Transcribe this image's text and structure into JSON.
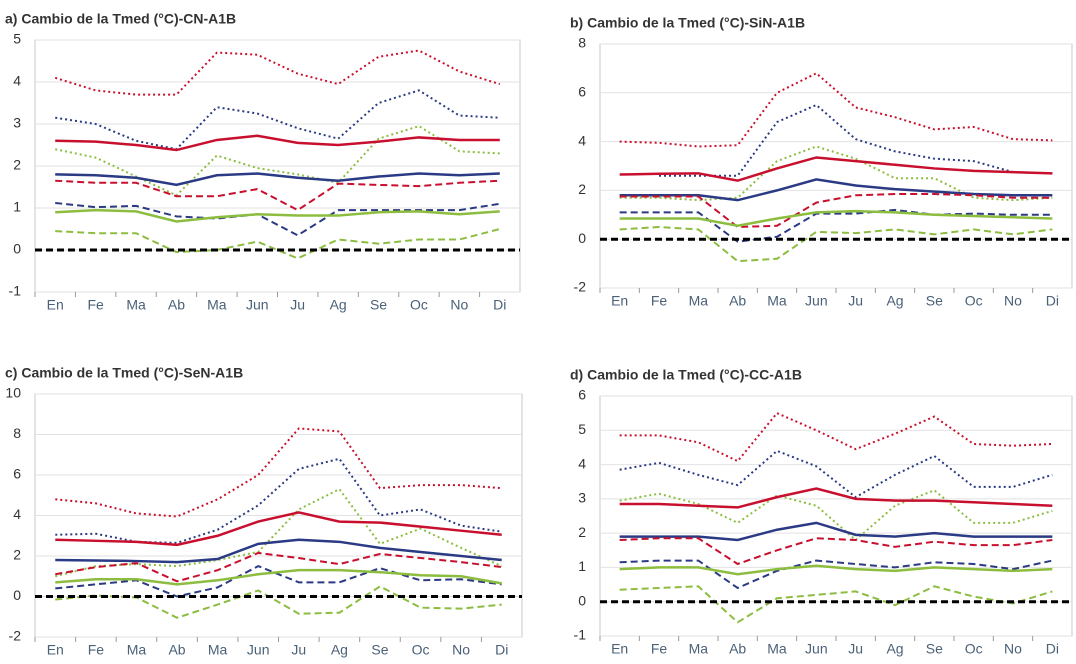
{
  "chart_data": [
    {
      "type": "line",
      "title": "a) Cambio de la Tmed (°C)-CN-A1B",
      "categories": [
        "En",
        "Fe",
        "Ma",
        "Ab",
        "Ma",
        "Jun",
        "Ju",
        "Ag",
        "Se",
        "Oc",
        "No",
        "Di"
      ],
      "ylim": [
        -1,
        5
      ],
      "yticks": [
        -1,
        0,
        1,
        2,
        3,
        4,
        5
      ],
      "grid": true,
      "reference_line": 0,
      "series": [
        {
          "color": "#c8102e",
          "style": "dotted",
          "values": [
            4.1,
            3.8,
            3.7,
            3.7,
            4.7,
            4.65,
            4.2,
            3.95,
            4.6,
            4.75,
            4.25,
            3.95
          ]
        },
        {
          "color": "#2a3a84",
          "style": "dotted",
          "values": [
            3.15,
            3.0,
            2.6,
            2.4,
            3.4,
            3.25,
            2.9,
            2.65,
            3.5,
            3.8,
            3.2,
            3.15
          ]
        },
        {
          "color": "#8cbd3f",
          "style": "dotted",
          "values": [
            2.4,
            2.2,
            1.75,
            1.3,
            2.25,
            1.95,
            1.8,
            1.6,
            2.65,
            2.95,
            2.35,
            2.3
          ]
        },
        {
          "color": "#c8102e",
          "style": "solid",
          "values": [
            2.6,
            2.58,
            2.5,
            2.38,
            2.62,
            2.72,
            2.55,
            2.5,
            2.58,
            2.68,
            2.62,
            2.62
          ]
        },
        {
          "color": "#2a3a84",
          "style": "solid",
          "values": [
            1.8,
            1.78,
            1.72,
            1.55,
            1.78,
            1.82,
            1.72,
            1.65,
            1.75,
            1.82,
            1.78,
            1.82
          ]
        },
        {
          "color": "#c8102e",
          "style": "dashed",
          "values": [
            1.65,
            1.6,
            1.6,
            1.28,
            1.28,
            1.45,
            0.95,
            1.58,
            1.55,
            1.52,
            1.6,
            1.65
          ]
        },
        {
          "color": "#2a3a84",
          "style": "dashed",
          "values": [
            1.12,
            1.02,
            1.05,
            0.8,
            0.75,
            0.85,
            0.35,
            0.95,
            0.95,
            0.95,
            0.95,
            1.1
          ]
        },
        {
          "color": "#8cbd3f",
          "style": "solid",
          "values": [
            0.9,
            0.95,
            0.92,
            0.68,
            0.78,
            0.85,
            0.82,
            0.82,
            0.9,
            0.92,
            0.85,
            0.92
          ]
        },
        {
          "color": "#8cbd3f",
          "style": "dashed",
          "values": [
            0.45,
            0.4,
            0.4,
            -0.05,
            0.0,
            0.2,
            -0.2,
            0.25,
            0.15,
            0.25,
            0.25,
            0.5
          ]
        }
      ]
    },
    {
      "type": "line",
      "title": "b) Cambio de la Tmed (°C)-SiN-A1B",
      "categories": [
        "En",
        "Fe",
        "Ma",
        "Ab",
        "Ma",
        "Jun",
        "Ju",
        "Ag",
        "Se",
        "Oc",
        "No",
        "Di"
      ],
      "ylim": [
        -2,
        8
      ],
      "yticks": [
        -2,
        0,
        2,
        4,
        6,
        8
      ],
      "grid": true,
      "reference_line": 0,
      "series": [
        {
          "color": "#c8102e",
          "style": "dotted",
          "values": [
            4.0,
            3.95,
            3.8,
            3.85,
            6.0,
            6.8,
            5.4,
            5.0,
            4.5,
            4.6,
            4.1,
            4.05
          ]
        },
        {
          "color": "#2a3a84",
          "style": "dotted",
          "values": [
            null,
            2.6,
            2.6,
            2.6,
            4.8,
            5.5,
            4.1,
            3.6,
            3.3,
            3.2,
            2.75,
            2.7
          ]
        },
        {
          "color": "#8cbd3f",
          "style": "dotted",
          "values": [
            1.7,
            1.7,
            1.6,
            1.7,
            3.2,
            3.8,
            3.3,
            2.5,
            2.5,
            1.7,
            1.6,
            1.7
          ]
        },
        {
          "color": "#c8102e",
          "style": "solid",
          "values": [
            2.65,
            2.68,
            2.7,
            2.4,
            2.9,
            3.35,
            3.2,
            3.05,
            2.9,
            2.8,
            2.75,
            2.7
          ]
        },
        {
          "color": "#2a3a84",
          "style": "solid",
          "values": [
            1.8,
            1.8,
            1.8,
            1.6,
            2.0,
            2.45,
            2.2,
            2.05,
            1.95,
            1.85,
            1.8,
            1.8
          ]
        },
        {
          "color": "#c8102e",
          "style": "dashed",
          "values": [
            1.75,
            1.75,
            1.75,
            0.5,
            0.55,
            1.5,
            1.8,
            1.85,
            1.85,
            1.8,
            1.7,
            1.7
          ]
        },
        {
          "color": "#2a3a84",
          "style": "dashed",
          "values": [
            1.1,
            1.1,
            1.1,
            -0.1,
            0.1,
            1.05,
            1.05,
            1.2,
            1.0,
            1.05,
            1.0,
            1.0
          ]
        },
        {
          "color": "#8cbd3f",
          "style": "solid",
          "values": [
            0.85,
            0.85,
            0.85,
            0.55,
            0.85,
            1.1,
            1.15,
            1.1,
            1.0,
            0.95,
            0.9,
            0.85
          ]
        },
        {
          "color": "#8cbd3f",
          "style": "dashed",
          "values": [
            0.4,
            0.5,
            0.4,
            -0.9,
            -0.8,
            0.3,
            0.25,
            0.4,
            0.2,
            0.4,
            0.2,
            0.4
          ]
        }
      ]
    },
    {
      "type": "line",
      "title": "c) Cambio de la Tmed (°C)-SeN-A1B",
      "categories": [
        "En",
        "Fe",
        "Ma",
        "Ab",
        "Ma",
        "Jun",
        "Ju",
        "Ag",
        "Se",
        "Oc",
        "No",
        "Di"
      ],
      "ylim": [
        -2,
        10
      ],
      "yticks": [
        -2,
        0,
        2,
        4,
        6,
        8,
        10
      ],
      "grid": true,
      "reference_line": 0,
      "series": [
        {
          "color": "#c8102e",
          "style": "dotted",
          "values": [
            4.8,
            4.6,
            4.1,
            3.95,
            4.8,
            6.0,
            8.3,
            8.15,
            5.35,
            5.5,
            5.5,
            5.35
          ]
        },
        {
          "color": "#2a3a84",
          "style": "dotted",
          "values": [
            3.05,
            3.1,
            2.7,
            2.65,
            3.3,
            4.5,
            6.3,
            6.8,
            4.0,
            4.3,
            3.5,
            3.2
          ]
        },
        {
          "color": "#8cbd3f",
          "style": "dotted",
          "values": [
            1.0,
            1.5,
            1.6,
            1.5,
            1.8,
            2.2,
            4.3,
            5.3,
            2.6,
            3.35,
            2.4,
            1.5
          ]
        },
        {
          "color": "#c8102e",
          "style": "solid",
          "values": [
            2.8,
            2.75,
            2.7,
            2.55,
            3.0,
            3.7,
            4.15,
            3.7,
            3.65,
            3.45,
            3.25,
            3.05
          ]
        },
        {
          "color": "#2a3a84",
          "style": "solid",
          "values": [
            1.8,
            1.78,
            1.75,
            1.7,
            1.85,
            2.6,
            2.8,
            2.7,
            2.4,
            2.2,
            2.0,
            1.8
          ]
        },
        {
          "color": "#c8102e",
          "style": "dashed",
          "values": [
            1.1,
            1.45,
            1.65,
            0.75,
            1.3,
            2.15,
            1.9,
            1.6,
            2.1,
            1.9,
            1.7,
            1.45
          ]
        },
        {
          "color": "#2a3a84",
          "style": "dashed",
          "values": [
            0.4,
            0.6,
            0.8,
            0.0,
            0.45,
            1.5,
            0.7,
            0.7,
            1.4,
            0.8,
            0.85,
            0.6
          ]
        },
        {
          "color": "#8cbd3f",
          "style": "solid",
          "values": [
            0.7,
            0.85,
            0.85,
            0.6,
            0.8,
            1.1,
            1.3,
            1.3,
            1.2,
            1.05,
            1.0,
            0.65
          ]
        },
        {
          "color": "#8cbd3f",
          "style": "dashed",
          "values": [
            -0.15,
            0.05,
            -0.05,
            -1.05,
            -0.4,
            0.3,
            -0.85,
            -0.8,
            0.5,
            -0.55,
            -0.6,
            -0.4
          ]
        }
      ]
    },
    {
      "type": "line",
      "title": "d) Cambio de la Tmed (°C)-CC-A1B",
      "categories": [
        "En",
        "Fe",
        "Ma",
        "Ab",
        "Ma",
        "Jun",
        "Ju",
        "Ag",
        "Se",
        "Oc",
        "No",
        "Di"
      ],
      "ylim": [
        -1,
        6
      ],
      "yticks": [
        -1,
        0,
        1,
        2,
        3,
        4,
        5,
        6
      ],
      "grid": true,
      "reference_line": 0,
      "series": [
        {
          "color": "#c8102e",
          "style": "dotted",
          "values": [
            4.85,
            4.85,
            4.65,
            4.1,
            5.5,
            5.0,
            4.45,
            4.9,
            5.4,
            4.6,
            4.55,
            4.6
          ]
        },
        {
          "color": "#2a3a84",
          "style": "dotted",
          "values": [
            3.85,
            4.05,
            3.7,
            3.4,
            4.4,
            3.95,
            3.05,
            3.7,
            4.25,
            3.35,
            3.35,
            3.7
          ]
        },
        {
          "color": "#8cbd3f",
          "style": "dotted",
          "values": [
            2.95,
            3.15,
            2.85,
            2.3,
            3.1,
            2.8,
            1.8,
            2.8,
            3.25,
            2.3,
            2.3,
            2.65
          ]
        },
        {
          "color": "#c8102e",
          "style": "solid",
          "values": [
            2.85,
            2.85,
            2.8,
            2.75,
            3.05,
            3.3,
            3.0,
            2.95,
            2.95,
            2.9,
            2.85,
            2.8
          ]
        },
        {
          "color": "#2a3a84",
          "style": "solid",
          "values": [
            1.9,
            1.9,
            1.9,
            1.8,
            2.1,
            2.3,
            1.95,
            1.9,
            2.0,
            1.9,
            1.9,
            1.9
          ]
        },
        {
          "color": "#c8102e",
          "style": "dashed",
          "values": [
            1.8,
            1.85,
            1.85,
            1.1,
            1.5,
            1.85,
            1.8,
            1.6,
            1.75,
            1.65,
            1.65,
            1.8
          ]
        },
        {
          "color": "#2a3a84",
          "style": "dashed",
          "values": [
            1.15,
            1.2,
            1.2,
            0.4,
            0.9,
            1.2,
            1.1,
            1.0,
            1.15,
            1.1,
            0.95,
            1.2
          ]
        },
        {
          "color": "#8cbd3f",
          "style": "solid",
          "values": [
            0.95,
            1.0,
            1.0,
            0.8,
            0.95,
            1.05,
            0.95,
            0.9,
            1.0,
            0.95,
            0.9,
            0.95
          ]
        },
        {
          "color": "#8cbd3f",
          "style": "dashed",
          "values": [
            0.35,
            0.4,
            0.45,
            -0.6,
            0.1,
            0.2,
            0.3,
            -0.1,
            0.45,
            0.15,
            -0.05,
            0.3
          ]
        }
      ]
    }
  ]
}
